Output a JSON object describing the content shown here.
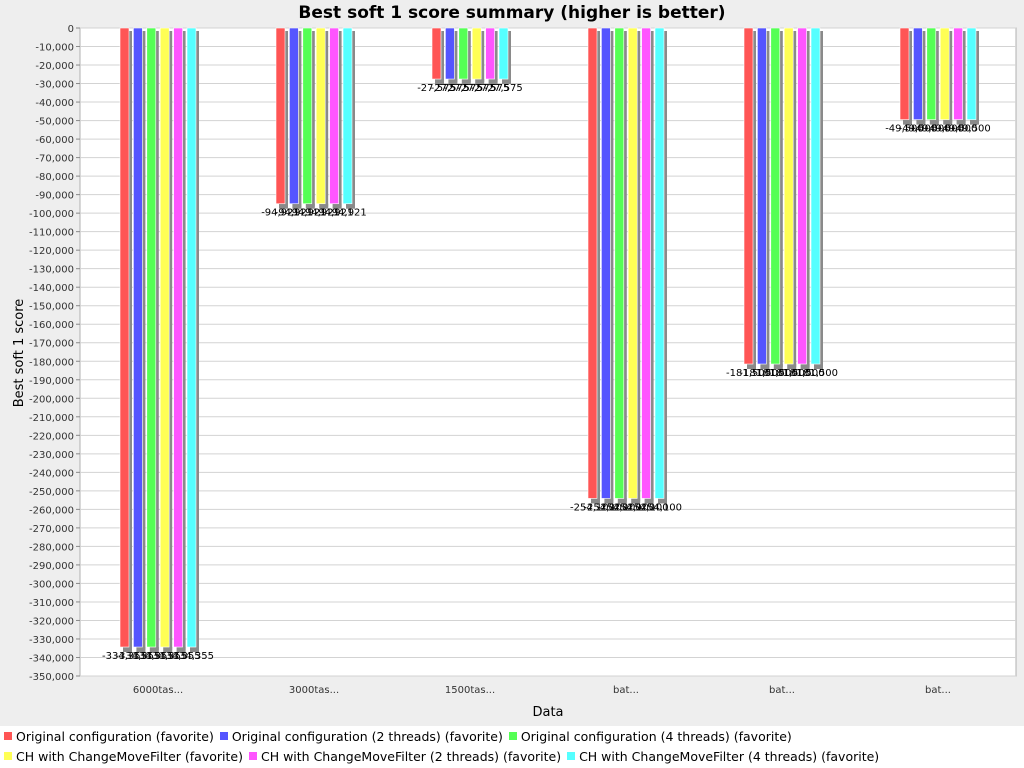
{
  "chart_data": {
    "type": "bar",
    "title": "Best soft 1 score summary (higher is better)",
    "xlabel": "Data",
    "ylabel": "Best soft 1 score",
    "ylim": [
      -350000,
      0
    ],
    "ytick_step": 10000,
    "grid": true,
    "legend_position": "bottom",
    "categories": [
      "6000tas...",
      "3000tas...",
      "1500tas...",
      "bat...",
      "bat...",
      "bat..."
    ],
    "series": [
      {
        "name": "Original configuration (favorite)",
        "color": "#ff5555",
        "values": [
          -334355,
          -94921,
          -27575,
          -254100,
          -181500,
          -49500
        ]
      },
      {
        "name": "Original configuration (2 threads) (favorite)",
        "color": "#5555ff",
        "values": [
          -334355,
          -94921,
          -27575,
          -254100,
          -181500,
          -49500
        ]
      },
      {
        "name": "Original configuration (4 threads) (favorite)",
        "color": "#55ff55",
        "values": [
          -334355,
          -94921,
          -27575,
          -254100,
          -181500,
          -49500
        ]
      },
      {
        "name": "CH with ChangeMoveFilter (favorite)",
        "color": "#ffff55",
        "values": [
          -334355,
          -94921,
          -27575,
          -254100,
          -181500,
          -49500
        ]
      },
      {
        "name": "CH with ChangeMoveFilter (2 threads) (favorite)",
        "color": "#ff55ff",
        "values": [
          -334355,
          -94921,
          -27575,
          -254100,
          -181500,
          -49500
        ]
      },
      {
        "name": "CH with ChangeMoveFilter (4 threads) (favorite)",
        "color": "#55ffff",
        "values": [
          -334355,
          -94921,
          -27575,
          -254100,
          -181500,
          -49500
        ]
      }
    ],
    "data_labels": [
      [
        "-334,355",
        "-334,355",
        "-334,355",
        "-334,355",
        "-334,355",
        "-334,355"
      ],
      [
        "-94,921",
        "-94,921",
        "-94,921",
        "-94,921",
        "-94,921",
        "-94,921"
      ],
      [
        "-27,575",
        "-27,575",
        "-27,575",
        "-27,575",
        "-27,575",
        "-27,575"
      ],
      [
        "-254,100",
        "-254,100",
        "-254,100",
        "-254,100",
        "-254,100",
        "-254,100"
      ],
      [
        "-181,500",
        "-181,500",
        "-181,500",
        "-181,500",
        "-181,500",
        "-181,500"
      ],
      [
        "-49,500",
        "-49,500",
        "-49,500",
        "-49,500",
        "-49,500",
        "-49,500"
      ]
    ]
  }
}
